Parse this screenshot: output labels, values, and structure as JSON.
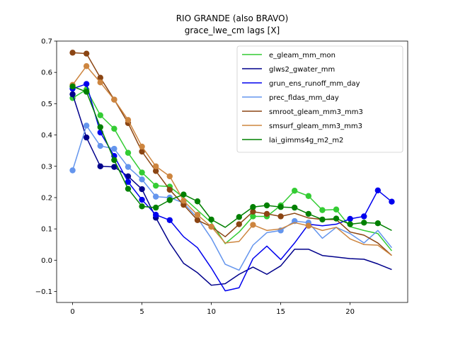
{
  "chart_data": {
    "type": "line",
    "title": "RIO GRANDE (also BRAVO)",
    "subtitle": "grace_lwe_cm lags [X]",
    "xlabel": "",
    "ylabel": "",
    "xlim": [
      -1.15,
      24.15
    ],
    "ylim": [
      -0.135,
      0.7
    ],
    "xticks": [
      0,
      5,
      10,
      15,
      20
    ],
    "yticks": [
      -0.1,
      0.0,
      0.1,
      0.2,
      0.3,
      0.4,
      0.5,
      0.6,
      0.7
    ],
    "ytick_labels": [
      "−0.1",
      "0.0",
      "0.1",
      "0.2",
      "0.3",
      "0.4",
      "0.5",
      "0.6",
      "0.7"
    ],
    "legend_position": "upper-right",
    "grid": false,
    "x": [
      0,
      1,
      2,
      3,
      4,
      5,
      6,
      7,
      8,
      9,
      10,
      11,
      12,
      13,
      14,
      15,
      16,
      17,
      18,
      19,
      20,
      21,
      22,
      23
    ],
    "series": [
      {
        "name": "e_gleam_mm_mon",
        "color": "#33cc33",
        "values": [
          0.518,
          0.545,
          0.463,
          0.42,
          0.343,
          0.28,
          0.238,
          0.235,
          0.2,
          0.16,
          0.12,
          0.053,
          0.09,
          0.14,
          0.14,
          0.175,
          0.222,
          0.205,
          0.16,
          0.162,
          0.107,
          0.095,
          0.085,
          0.03
        ],
        "markers": [
          true,
          true,
          true,
          true,
          true,
          true,
          true,
          true,
          false,
          false,
          false,
          false,
          false,
          true,
          true,
          true,
          true,
          true,
          true,
          true,
          false,
          false,
          false,
          false
        ]
      },
      {
        "name": "glws2_gwater_mm",
        "color": "#00008b",
        "values": [
          0.53,
          0.392,
          0.3,
          0.298,
          0.268,
          0.227,
          0.136,
          0.055,
          -0.01,
          -0.04,
          -0.08,
          -0.075,
          -0.045,
          -0.022,
          -0.045,
          -0.018,
          0.035,
          0.035,
          0.015,
          0.01,
          0.005,
          0.003,
          -0.012,
          -0.03
        ],
        "markers": [
          true,
          true,
          true,
          true,
          true,
          true,
          true,
          false,
          false,
          false,
          false,
          false,
          false,
          false,
          false,
          false,
          false,
          false,
          false,
          false,
          false,
          false,
          false,
          false
        ]
      },
      {
        "name": "grun_ens_runoff_mm_day",
        "color": "#0000ee",
        "values": [
          0.548,
          0.563,
          0.408,
          0.333,
          0.25,
          0.193,
          0.145,
          0.128,
          0.075,
          0.04,
          -0.025,
          -0.098,
          -0.088,
          0.005,
          0.045,
          0.002,
          0.055,
          0.115,
          0.11,
          0.115,
          0.132,
          0.14,
          0.223,
          0.187
        ],
        "markers": [
          true,
          true,
          true,
          true,
          true,
          true,
          true,
          true,
          false,
          false,
          false,
          false,
          false,
          false,
          false,
          false,
          false,
          false,
          false,
          false,
          true,
          true,
          true,
          true
        ]
      },
      {
        "name": "prec_fldas_mm_day",
        "color": "#6495ed",
        "values": [
          0.287,
          0.43,
          0.365,
          0.356,
          0.298,
          0.258,
          0.203,
          0.2,
          0.183,
          0.135,
          0.07,
          -0.013,
          -0.032,
          0.048,
          0.088,
          0.095,
          0.125,
          0.12,
          0.07,
          0.105,
          0.085,
          0.055,
          0.095,
          0.04
        ],
        "markers": [
          true,
          true,
          true,
          true,
          true,
          true,
          true,
          true,
          true,
          false,
          false,
          false,
          false,
          false,
          false,
          true,
          true,
          true,
          false,
          false,
          false,
          false,
          false,
          false
        ]
      },
      {
        "name": "smroot_gleam_mm3_mm3",
        "color": "#8b4513",
        "values": [
          0.663,
          0.66,
          0.583,
          0.513,
          0.438,
          0.347,
          0.285,
          0.225,
          0.177,
          0.128,
          0.107,
          0.075,
          0.115,
          0.155,
          0.148,
          0.14,
          0.15,
          0.135,
          0.13,
          0.13,
          0.09,
          0.08,
          0.055,
          0.015
        ],
        "markers": [
          true,
          true,
          true,
          true,
          true,
          true,
          true,
          true,
          true,
          true,
          true,
          false,
          true,
          true,
          true,
          true,
          false,
          false,
          false,
          false,
          false,
          false,
          false,
          false
        ]
      },
      {
        "name": "smsurf_gleam_mm3_mm3",
        "color": "#cd853f",
        "values": [
          0.56,
          0.62,
          0.568,
          0.513,
          0.448,
          0.363,
          0.3,
          0.268,
          0.19,
          0.145,
          0.107,
          0.055,
          0.06,
          0.113,
          0.095,
          0.1,
          0.12,
          0.11,
          0.095,
          0.105,
          0.068,
          0.05,
          0.048,
          0.015
        ],
        "markers": [
          true,
          true,
          true,
          true,
          true,
          true,
          true,
          true,
          true,
          true,
          true,
          false,
          false,
          true,
          false,
          false,
          false,
          true,
          false,
          false,
          false,
          false,
          false,
          false
        ]
      },
      {
        "name": "lai_gimms4g_m2_m2",
        "color": "#008000",
        "values": [
          0.555,
          0.538,
          0.425,
          0.32,
          0.228,
          0.172,
          0.168,
          0.192,
          0.21,
          0.188,
          0.13,
          0.105,
          0.138,
          0.17,
          0.175,
          0.17,
          0.168,
          0.148,
          0.13,
          0.133,
          0.115,
          0.12,
          0.118,
          0.095
        ],
        "markers": [
          true,
          true,
          true,
          true,
          true,
          true,
          true,
          true,
          true,
          true,
          true,
          false,
          true,
          true,
          true,
          true,
          true,
          true,
          true,
          true,
          true,
          true,
          true,
          false
        ]
      }
    ]
  }
}
